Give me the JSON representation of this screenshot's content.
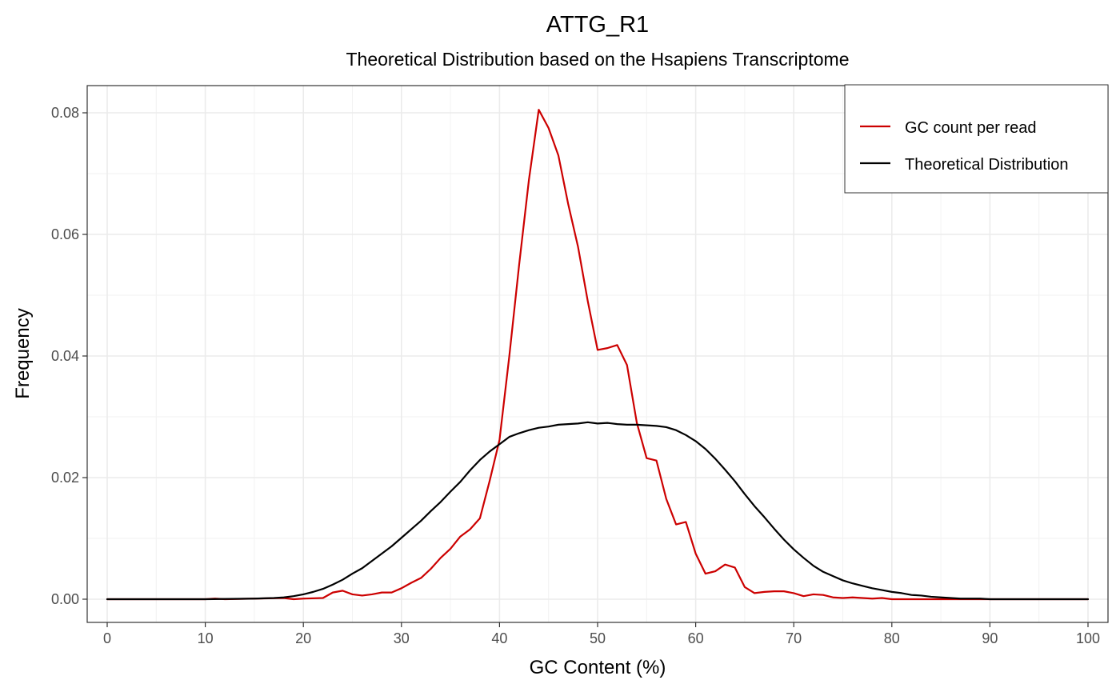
{
  "chart_data": {
    "type": "line",
    "title": "ATTG_R1",
    "subtitle": "Theoretical Distribution based on the Hsapiens Transcriptome",
    "xlabel": "GC Content (%)",
    "ylabel": "Frequency",
    "xlim": [
      0,
      100
    ],
    "ylim": [
      0,
      0.08
    ],
    "xticks": [
      "0",
      "10",
      "20",
      "30",
      "40",
      "50",
      "60",
      "70",
      "80",
      "90",
      "100"
    ],
    "yticks": [
      "0.00",
      "0.02",
      "0.04",
      "0.06",
      "0.08"
    ],
    "legend_position": "top-right",
    "series": [
      {
        "name": "GC count per read",
        "color": "#cc0000",
        "points": [
          [
            0,
            0
          ],
          [
            10,
            0
          ],
          [
            11,
            0.0001
          ],
          [
            12,
            0
          ],
          [
            15,
            0.0001
          ],
          [
            18,
            0.0002
          ],
          [
            19,
            0
          ],
          [
            20,
            0.0001
          ],
          [
            22,
            0.0002
          ],
          [
            23,
            0.0011
          ],
          [
            24,
            0.0014
          ],
          [
            25,
            0.0008
          ],
          [
            26,
            0.0006
          ],
          [
            27,
            0.0008
          ],
          [
            28,
            0.0011
          ],
          [
            29,
            0.0011
          ],
          [
            30,
            0.0018
          ],
          [
            31,
            0.0027
          ],
          [
            32,
            0.0035
          ],
          [
            33,
            0.005
          ],
          [
            34,
            0.0068
          ],
          [
            35,
            0.0083
          ],
          [
            36,
            0.0103
          ],
          [
            37,
            0.0115
          ],
          [
            38,
            0.0133
          ],
          [
            39,
            0.0195
          ],
          [
            40,
            0.0262
          ],
          [
            41,
            0.04
          ],
          [
            42,
            0.055
          ],
          [
            43,
            0.069
          ],
          [
            44,
            0.0805
          ],
          [
            45,
            0.0775
          ],
          [
            46,
            0.073
          ],
          [
            47,
            0.065
          ],
          [
            48,
            0.058
          ],
          [
            49,
            0.049
          ],
          [
            50,
            0.041
          ],
          [
            51,
            0.0413
          ],
          [
            52,
            0.0418
          ],
          [
            53,
            0.0385
          ],
          [
            54,
            0.029
          ],
          [
            55,
            0.0232
          ],
          [
            56,
            0.0228
          ],
          [
            57,
            0.0165
          ],
          [
            58,
            0.0123
          ],
          [
            59,
            0.0127
          ],
          [
            60,
            0.0075
          ],
          [
            61,
            0.0042
          ],
          [
            62,
            0.0046
          ],
          [
            63,
            0.0057
          ],
          [
            64,
            0.0052
          ],
          [
            65,
            0.002
          ],
          [
            66,
            0.001
          ],
          [
            67,
            0.0012
          ],
          [
            68,
            0.0013
          ],
          [
            69,
            0.0013
          ],
          [
            70,
            0.001
          ],
          [
            71,
            0.0005
          ],
          [
            72,
            0.0008
          ],
          [
            73,
            0.0007
          ],
          [
            74,
            0.0003
          ],
          [
            75,
            0.0002
          ],
          [
            76,
            0.0003
          ],
          [
            78,
            0.0001
          ],
          [
            79,
            0.0002
          ],
          [
            80,
            0
          ],
          [
            100,
            0
          ]
        ]
      },
      {
        "name": "Theoretical Distribution",
        "color": "#000000",
        "points": [
          [
            0,
            0
          ],
          [
            10,
            0
          ],
          [
            15,
            0.0001
          ],
          [
            17,
            0.0002
          ],
          [
            18,
            0.0003
          ],
          [
            19,
            0.0005
          ],
          [
            20,
            0.0008
          ],
          [
            21,
            0.0012
          ],
          [
            22,
            0.0017
          ],
          [
            23,
            0.0024
          ],
          [
            24,
            0.0032
          ],
          [
            25,
            0.0042
          ],
          [
            26,
            0.0051
          ],
          [
            27,
            0.0063
          ],
          [
            28,
            0.0075
          ],
          [
            29,
            0.0087
          ],
          [
            30,
            0.0101
          ],
          [
            31,
            0.0115
          ],
          [
            32,
            0.0129
          ],
          [
            33,
            0.0145
          ],
          [
            34,
            0.016
          ],
          [
            35,
            0.0177
          ],
          [
            36,
            0.0193
          ],
          [
            37,
            0.0212
          ],
          [
            38,
            0.0229
          ],
          [
            39,
            0.0243
          ],
          [
            40,
            0.0255
          ],
          [
            41,
            0.0267
          ],
          [
            42,
            0.0273
          ],
          [
            43,
            0.0278
          ],
          [
            44,
            0.0282
          ],
          [
            45,
            0.0284
          ],
          [
            46,
            0.0287
          ],
          [
            47,
            0.0288
          ],
          [
            48,
            0.0289
          ],
          [
            49,
            0.0291
          ],
          [
            50,
            0.0289
          ],
          [
            51,
            0.029
          ],
          [
            52,
            0.0288
          ],
          [
            53,
            0.0287
          ],
          [
            54,
            0.0287
          ],
          [
            55,
            0.0286
          ],
          [
            56,
            0.0285
          ],
          [
            57,
            0.0283
          ],
          [
            58,
            0.0278
          ],
          [
            59,
            0.027
          ],
          [
            60,
            0.026
          ],
          [
            61,
            0.0247
          ],
          [
            62,
            0.0231
          ],
          [
            63,
            0.0213
          ],
          [
            64,
            0.0194
          ],
          [
            65,
            0.0173
          ],
          [
            66,
            0.0153
          ],
          [
            67,
            0.0135
          ],
          [
            68,
            0.0116
          ],
          [
            69,
            0.0098
          ],
          [
            70,
            0.0082
          ],
          [
            71,
            0.0068
          ],
          [
            72,
            0.0055
          ],
          [
            73,
            0.0045
          ],
          [
            74,
            0.0038
          ],
          [
            75,
            0.0031
          ],
          [
            76,
            0.0026
          ],
          [
            77,
            0.0022
          ],
          [
            78,
            0.0018
          ],
          [
            79,
            0.0015
          ],
          [
            80,
            0.0012
          ],
          [
            81,
            0.001
          ],
          [
            82,
            0.0007
          ],
          [
            83,
            0.0006
          ],
          [
            84,
            0.0004
          ],
          [
            85,
            0.0003
          ],
          [
            86,
            0.0002
          ],
          [
            87,
            0.0001
          ],
          [
            89,
            0.0001
          ],
          [
            90,
            0
          ],
          [
            100,
            0
          ]
        ]
      }
    ]
  }
}
